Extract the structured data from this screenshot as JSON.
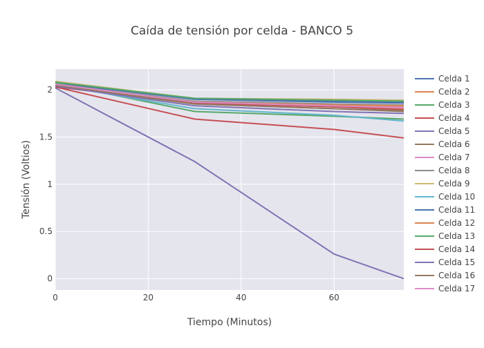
{
  "colors": {
    "plot_bg": "#e5e5ee",
    "grid": "#ffffff",
    "text": "#444444",
    "title": "#444444",
    "series_palette": [
      "#4c72b0",
      "#dd8452",
      "#55a868",
      "#c44e52",
      "#8172b3",
      "#937860",
      "#da8bc3",
      "#8c8c8c",
      "#ccb974",
      "#64b5cd"
    ]
  },
  "chart_data": {
    "type": "line",
    "title": "Caída de tensión por celda - BANCO 5",
    "xlabel": "Tiempo (Minutos)",
    "ylabel": "Tensión (Voltios)",
    "xlim": [
      0,
      75
    ],
    "ylim": [
      -0.12,
      2.22
    ],
    "x": [
      0,
      30,
      60,
      75
    ],
    "x_ticks": [
      0,
      20,
      40,
      60
    ],
    "y_ticks": [
      0,
      0.5,
      1,
      1.5,
      2
    ],
    "x_tick_labels": [
      "0",
      "20",
      "40",
      "60"
    ],
    "y_tick_labels": [
      "0",
      "0.5",
      "1",
      "1.5",
      "2"
    ],
    "grid": true,
    "legend_position": "right",
    "series": [
      {
        "name": "Celda 1",
        "values": [
          2.07,
          1.9,
          1.87,
          1.86
        ]
      },
      {
        "name": "Celda 2",
        "values": [
          2.05,
          1.86,
          1.82,
          1.8
        ]
      },
      {
        "name": "Celda 3",
        "values": [
          2.07,
          1.77,
          1.72,
          1.69
        ]
      },
      {
        "name": "Celda 4",
        "values": [
          2.03,
          1.69,
          1.58,
          1.49
        ]
      },
      {
        "name": "Celda 5",
        "values": [
          2.02,
          1.24,
          0.26,
          0.0
        ]
      },
      {
        "name": "Celda 6",
        "values": [
          2.04,
          1.85,
          1.8,
          1.77
        ]
      },
      {
        "name": "Celda 7",
        "values": [
          2.05,
          1.87,
          1.84,
          1.82
        ]
      },
      {
        "name": "Celda 8",
        "values": [
          2.06,
          1.88,
          1.85,
          1.84
        ]
      },
      {
        "name": "Celda 9",
        "values": [
          2.09,
          1.91,
          1.9,
          1.89
        ]
      },
      {
        "name": "Celda 10",
        "values": [
          2.05,
          1.8,
          1.73,
          1.67
        ]
      },
      {
        "name": "Celda 11",
        "values": [
          2.08,
          1.9,
          1.88,
          1.87
        ]
      },
      {
        "name": "Celda 12",
        "values": [
          2.05,
          1.87,
          1.84,
          1.83
        ]
      },
      {
        "name": "Celda 13",
        "values": [
          2.08,
          1.91,
          1.89,
          1.88
        ]
      },
      {
        "name": "Celda 14",
        "values": [
          2.03,
          1.86,
          1.82,
          1.79
        ]
      },
      {
        "name": "Celda 15",
        "values": [
          2.04,
          1.83,
          1.77,
          1.75
        ]
      },
      {
        "name": "Celda 16",
        "values": [
          2.05,
          1.85,
          1.8,
          1.78
        ]
      },
      {
        "name": "Celda 17",
        "values": [
          2.06,
          1.87,
          1.83,
          1.81
        ]
      }
    ]
  }
}
